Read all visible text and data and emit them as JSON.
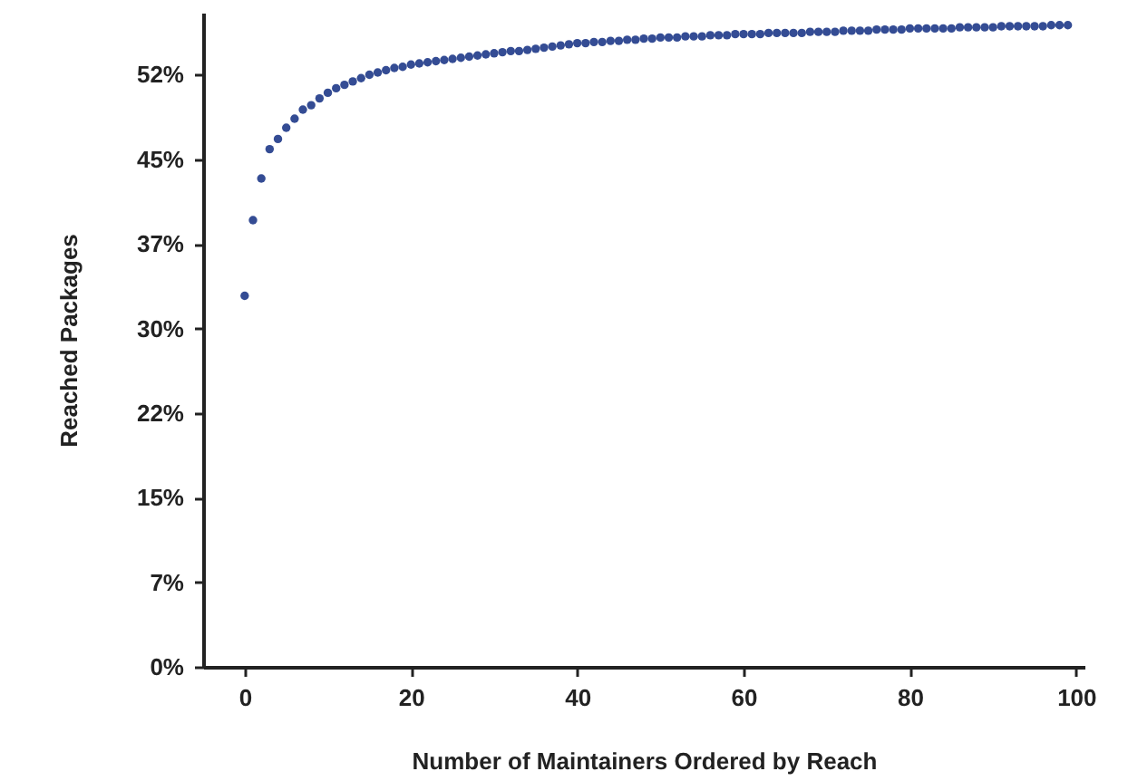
{
  "chart_data": {
    "type": "scatter",
    "xlabel": "Number of Maintainers Ordered by Reach",
    "ylabel": "Reached Packages",
    "x": [
      0,
      1,
      2,
      3,
      4,
      5,
      6,
      7,
      8,
      9,
      10,
      11,
      12,
      13,
      14,
      15,
      16,
      17,
      18,
      19,
      20,
      21,
      22,
      23,
      24,
      25,
      26,
      27,
      28,
      29,
      30,
      31,
      32,
      33,
      34,
      35,
      36,
      37,
      38,
      39,
      40,
      41,
      42,
      43,
      44,
      45,
      46,
      47,
      48,
      49,
      50,
      51,
      52,
      53,
      54,
      55,
      56,
      57,
      58,
      59,
      60,
      61,
      62,
      63,
      64,
      65,
      66,
      67,
      68,
      69,
      70,
      71,
      72,
      73,
      74,
      75,
      76,
      77,
      78,
      79,
      80,
      81,
      82,
      83,
      84,
      85,
      86,
      87,
      88,
      89,
      90,
      91,
      92,
      93,
      94,
      95,
      96,
      97,
      98,
      99
    ],
    "series": [
      {
        "color": "#344c94",
        "values": [
          32.9,
          39.6,
          43.3,
          45.9,
          46.8,
          47.8,
          48.6,
          49.4,
          49.8,
          50.4,
          50.9,
          51.3,
          51.6,
          51.9,
          52.2,
          52.5,
          52.7,
          52.9,
          53.1,
          53.2,
          53.4,
          53.5,
          53.6,
          53.7,
          53.8,
          53.9,
          54.0,
          54.1,
          54.2,
          54.3,
          54.4,
          54.5,
          54.6,
          54.6,
          54.7,
          54.8,
          54.9,
          55.0,
          55.1,
          55.2,
          55.3,
          55.3,
          55.4,
          55.4,
          55.5,
          55.5,
          55.6,
          55.6,
          55.7,
          55.7,
          55.8,
          55.8,
          55.8,
          55.9,
          55.9,
          55.9,
          56.0,
          56.0,
          56.0,
          56.1,
          56.1,
          56.1,
          56.1,
          56.2,
          56.2,
          56.2,
          56.2,
          56.2,
          56.3,
          56.3,
          56.3,
          56.3,
          56.4,
          56.4,
          56.4,
          56.4,
          56.5,
          56.5,
          56.5,
          56.5,
          56.6,
          56.6,
          56.6,
          56.6,
          56.6,
          56.6,
          56.7,
          56.7,
          56.7,
          56.7,
          56.7,
          56.8,
          56.8,
          56.8,
          56.8,
          56.8,
          56.8,
          56.9,
          56.9,
          56.9
        ]
      }
    ],
    "xlim": [
      -5,
      101
    ],
    "xticks": [
      0,
      20,
      40,
      60,
      80,
      100
    ],
    "ylim": [
      0,
      58
    ],
    "yticks": [
      {
        "value": 0,
        "label": "0%"
      },
      {
        "value": 7.5,
        "label": "7%"
      },
      {
        "value": 15,
        "label": "15%"
      },
      {
        "value": 22.5,
        "label": "22%"
      },
      {
        "value": 30,
        "label": "30%"
      },
      {
        "value": 37.5,
        "label": "37%"
      },
      {
        "value": 45,
        "label": "45%"
      },
      {
        "value": 52.5,
        "label": "52%"
      }
    ],
    "grid": false,
    "marker": "circle"
  }
}
